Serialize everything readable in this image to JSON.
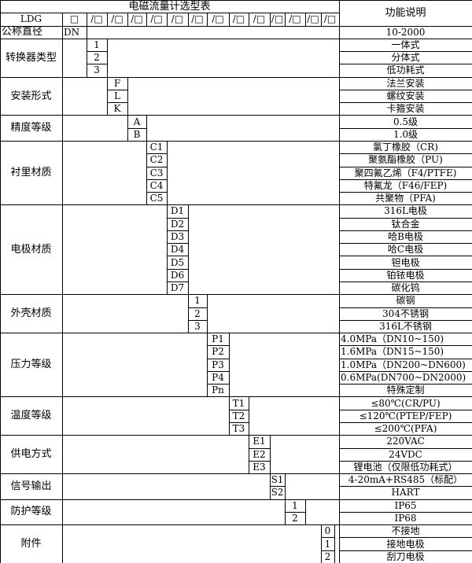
{
  "header": {
    "title": "电磁流量计选型表",
    "desc_title": "功能说明",
    "model": "LDG",
    "first_slot": "□",
    "slots": [
      "/□",
      "/□",
      "/□",
      "/□",
      "/□",
      "/□",
      "/□",
      "/□",
      "/□",
      "/□",
      "/□",
      "/□",
      "/□"
    ]
  },
  "nominal": {
    "label": "公称直径",
    "code": "DN",
    "desc": "10-2000"
  },
  "groups": [
    {
      "label": "转换器类型",
      "items": [
        {
          "code": "1",
          "desc": "一体式"
        },
        {
          "code": "2",
          "desc": "分体式"
        },
        {
          "code": "3",
          "desc": "低功耗式"
        }
      ]
    },
    {
      "label": "安装形式",
      "items": [
        {
          "code": "F",
          "desc": "法兰安装"
        },
        {
          "code": "L",
          "desc": "螺纹安装"
        },
        {
          "code": "K",
          "desc": "卡箍安装"
        }
      ]
    },
    {
      "label": "精度等级",
      "items": [
        {
          "code": "A",
          "desc": "0.5级"
        },
        {
          "code": "B",
          "desc": "1.0级"
        }
      ]
    },
    {
      "label": "衬里材质",
      "items": [
        {
          "code": "C1",
          "desc": "氯丁橡胶（CR)"
        },
        {
          "code": "C2",
          "desc": "聚氨酯橡胶（PU)"
        },
        {
          "code": "C3",
          "desc": "聚四氟乙烯（F4/PTFE)"
        },
        {
          "code": "C4",
          "desc": "特氟龙（F46/FEP)"
        },
        {
          "code": "C5",
          "desc": "共聚物（PFA)"
        }
      ]
    },
    {
      "label": "电极材质",
      "items": [
        {
          "code": "D1",
          "desc": "316L电极"
        },
        {
          "code": "D2",
          "desc": "钛合金"
        },
        {
          "code": "D3",
          "desc": "哈B电极"
        },
        {
          "code": "D4",
          "desc": "哈C电极"
        },
        {
          "code": "D5",
          "desc": "钽电极"
        },
        {
          "code": "D6",
          "desc": "铂铱电极"
        },
        {
          "code": "D7",
          "desc": "碳化钨"
        }
      ]
    },
    {
      "label": "外壳材质",
      "items": [
        {
          "code": "1",
          "desc": "碳钢"
        },
        {
          "code": "2",
          "desc": "304不锈钢"
        },
        {
          "code": "3",
          "desc": "316L不锈钢"
        }
      ]
    },
    {
      "label": "压力等级",
      "items": [
        {
          "code": "P1",
          "desc": "4.0MPa（DN10~150)"
        },
        {
          "code": "P2",
          "desc": "1.6MPa（DN15~150)"
        },
        {
          "code": "P3",
          "desc": "1.0MPa（DN200~DN600)"
        },
        {
          "code": "P4",
          "desc": "0.6MPa(DN700~DN2000)"
        },
        {
          "code": "Pn",
          "desc": "特殊定制"
        }
      ]
    },
    {
      "label": "温度等级",
      "items": [
        {
          "code": "T1",
          "desc": "≤80℃(CR/PU)"
        },
        {
          "code": "T2",
          "desc": "≤120℃(PTEP/FEP)"
        },
        {
          "code": "T3",
          "desc": "≤200℃(PFA)"
        }
      ]
    },
    {
      "label": "供电方式",
      "items": [
        {
          "code": "E1",
          "desc": "220VAC"
        },
        {
          "code": "E2",
          "desc": "24VDC"
        },
        {
          "code": "E3",
          "desc": "锂电池（仅限低功耗式）"
        }
      ]
    },
    {
      "label": "信号输出",
      "items": [
        {
          "code": "S1",
          "desc": "4-20mA+RS485（标配）"
        },
        {
          "code": "S2",
          "desc": "HART"
        }
      ]
    },
    {
      "label": "防护等级",
      "items": [
        {
          "code": "1",
          "desc": "IP65"
        },
        {
          "code": "2",
          "desc": "IP68"
        }
      ]
    },
    {
      "label": "附件",
      "items": [
        {
          "code": "0",
          "desc": "不接地"
        },
        {
          "code": "1",
          "desc": "接地电极"
        },
        {
          "code": "2",
          "desc": "刮刀电极"
        }
      ]
    }
  ]
}
